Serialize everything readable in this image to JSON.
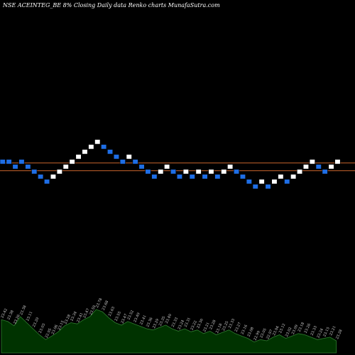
{
  "header": {
    "title": "NSE ACEINTEG_BE 8% Closing Daily data Renko charts MunafaSutra.com"
  },
  "colors": {
    "background": "#000000",
    "up_brick": "#ffffff",
    "down_brick": "#1e6ee6",
    "brick_outline": "#000000",
    "ref_line": "#c0602a",
    "volume_fill": "#003300",
    "volume_stroke": "#2f7d2f"
  },
  "chart_data": {
    "type": "renko",
    "brick_colors": [
      "down",
      "down",
      "down",
      "down",
      "down",
      "down",
      "down",
      "down",
      "up",
      "up",
      "up",
      "up",
      "up",
      "up",
      "up",
      "up",
      "down",
      "down",
      "down",
      "down",
      "up",
      "down",
      "down",
      "down",
      "down",
      "up",
      "up",
      "down",
      "down",
      "up",
      "down",
      "up",
      "down",
      "up",
      "down",
      "up",
      "up",
      "down",
      "down",
      "down",
      "down",
      "up",
      "down",
      "up",
      "up",
      "down",
      "up",
      "up",
      "up",
      "up",
      "down",
      "down",
      "up",
      "up"
    ],
    "brick_levels": [
      3,
      3,
      2,
      3,
      2,
      1,
      0,
      -1,
      0,
      1,
      2,
      3,
      4,
      5,
      6,
      7,
      6,
      5,
      4,
      3,
      4,
      3,
      2,
      1,
      0,
      1,
      2,
      1,
      0,
      1,
      0,
      1,
      0,
      1,
      0,
      1,
      2,
      1,
      0,
      -1,
      -2,
      -1,
      -2,
      -1,
      0,
      -1,
      0,
      1,
      2,
      3,
      2,
      1,
      2,
      3
    ],
    "reference_lines": [
      "upper",
      "lower"
    ],
    "volume": {
      "values": [
        55,
        52,
        45,
        60,
        50,
        40,
        30,
        22,
        28,
        35,
        45,
        50,
        48,
        55,
        60,
        72,
        68,
        58,
        50,
        46,
        52,
        48,
        44,
        40,
        38,
        42,
        46,
        40,
        36,
        40,
        35,
        38,
        32,
        36,
        30,
        34,
        38,
        32,
        28,
        24,
        18,
        22,
        20,
        26,
        30,
        24,
        28,
        32,
        30,
        26,
        22,
        24,
        26,
        20
      ],
      "labels": [
        "23.42",
        "23.38",
        "23.26",
        "23.38",
        "23.11",
        "23.20",
        "23.03",
        "22.95",
        "23.06",
        "23.15",
        "23.28",
        "23.34",
        "23.41",
        "23.47",
        "23.59",
        "23.78",
        "23.68",
        "23.63",
        "23.55",
        "23.47",
        "23.52",
        "23.49",
        "23.41",
        "23.36",
        "23.29",
        "23.35",
        "23.40",
        "23.33",
        "23.24",
        "23.31",
        "23.22",
        "23.30",
        "23.21",
        "23.28",
        "23.18",
        "23.25",
        "23.33",
        "23.27",
        "23.16",
        "23.08",
        "22.99",
        "23.05",
        "22.97",
        "23.04",
        "23.12",
        "23.02",
        "23.09",
        "23.18",
        "23.26",
        "23.33",
        "23.24",
        "23.15",
        "23.21",
        "23.28"
      ]
    }
  }
}
